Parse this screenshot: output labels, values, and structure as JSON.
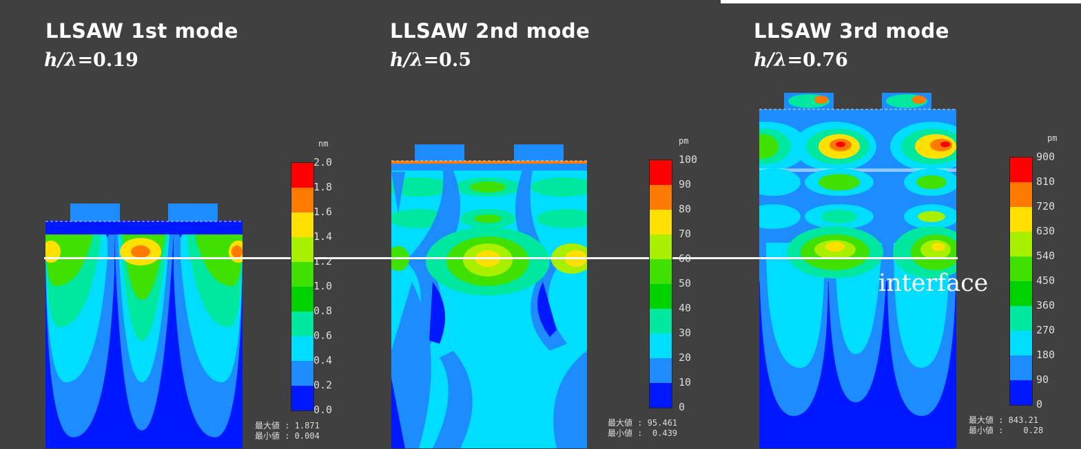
{
  "panels": [
    {
      "title": "LLSAW 1st mode",
      "ratio_var": "h/λ",
      "ratio_value": "=0.19",
      "unit": "nm",
      "ticks": [
        "2.0",
        "1.8",
        "1.6",
        "1.4",
        "1.2",
        "1.0",
        "0.8",
        "0.6",
        "0.4",
        "0.2",
        "0.0"
      ],
      "max_label": "最大値 : 1.871",
      "min_label": "最小値 : 0.004"
    },
    {
      "title": "LLSAW 2nd mode",
      "ratio_var": "h/λ",
      "ratio_value": "=0.5",
      "unit": "pm",
      "ticks": [
        "100",
        "90",
        "80",
        "70",
        "60",
        "50",
        "40",
        "30",
        "20",
        "10",
        "0"
      ],
      "max_label": "最大値 : 95.461",
      "min_label": "最小値 :  0.439"
    },
    {
      "title": "LLSAW 3rd mode",
      "ratio_var": "h/λ",
      "ratio_value": "=0.76",
      "unit": "pm",
      "ticks": [
        "900",
        "810",
        "720",
        "630",
        "540",
        "450",
        "360",
        "270",
        "180",
        "90",
        "0"
      ],
      "max_label": "最大値 : 843.21",
      "min_label": "最小値 :    0.28"
    }
  ],
  "interface_label": "interface",
  "colormap": [
    "#ff0000",
    "#ff7a00",
    "#ffe000",
    "#a8f000",
    "#40e000",
    "#00d200",
    "#00e8a0",
    "#00ddff",
    "#1c8cff",
    "#0018ff"
  ]
}
